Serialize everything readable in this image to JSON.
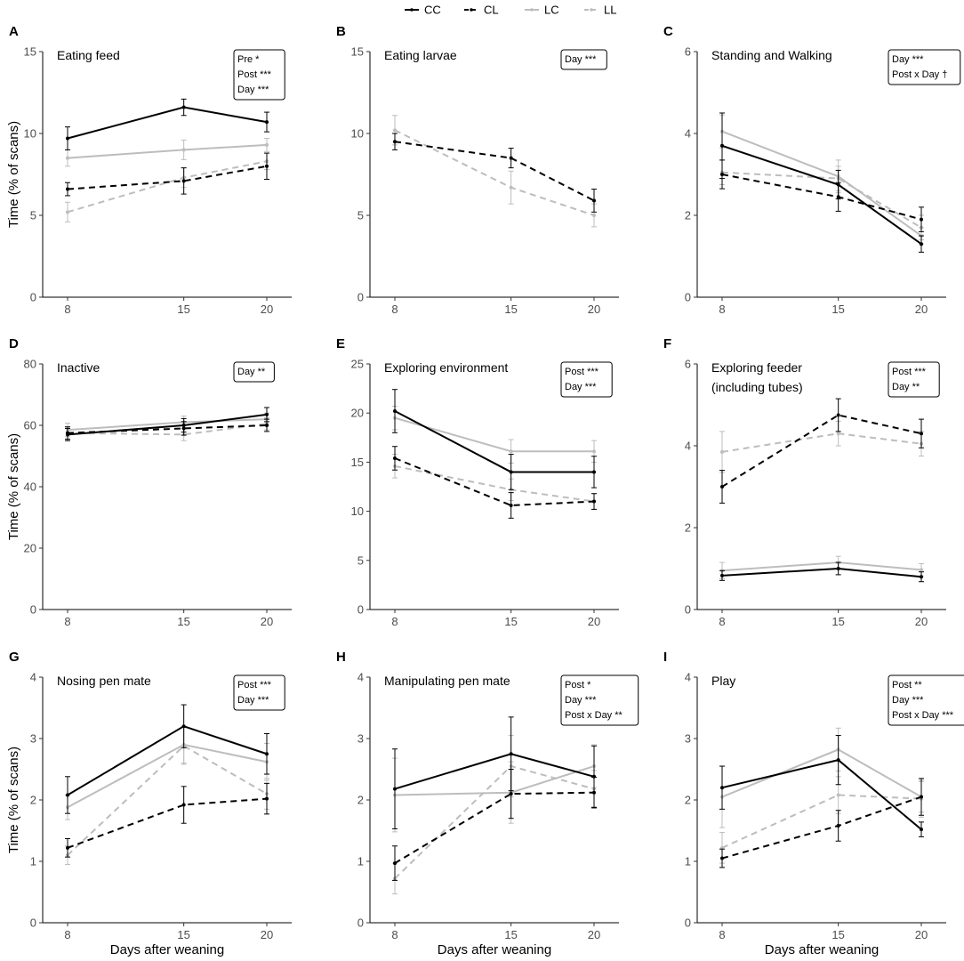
{
  "figure": {
    "x_label": "Days after weaning",
    "y_label": "Time (% of scans)"
  },
  "legend": [
    {
      "name": "CC",
      "color": "#000000",
      "dash": "solid"
    },
    {
      "name": "CL",
      "color": "#000000",
      "dash": "dashed"
    },
    {
      "name": "LC",
      "color": "#bdbdbd",
      "dash": "solid"
    },
    {
      "name": "LL",
      "color": "#bdbdbd",
      "dash": "dashed"
    }
  ],
  "chart_data": [
    {
      "type": "line",
      "letter": "A",
      "title": [
        "Eating feed"
      ],
      "stats": [
        "Pre *",
        "Post ***",
        "Day ***"
      ],
      "x": [
        8,
        15,
        20
      ],
      "xticks": [
        8,
        15,
        20
      ],
      "ylim": [
        0,
        15
      ],
      "yticks": [
        0,
        5,
        10,
        15
      ],
      "series": [
        {
          "name": "CC",
          "values": [
            9.7,
            11.6,
            10.7
          ],
          "err": [
            0.7,
            0.5,
            0.6
          ]
        },
        {
          "name": "CL",
          "values": [
            6.6,
            7.1,
            8.0
          ],
          "err": [
            0.4,
            0.8,
            0.8
          ]
        },
        {
          "name": "LC",
          "values": [
            8.5,
            9.0,
            9.3
          ],
          "err": [
            0.5,
            0.6,
            0.4
          ]
        },
        {
          "name": "LL",
          "values": [
            5.2,
            7.3,
            8.3
          ],
          "err": [
            0.6,
            0.6,
            0.5
          ]
        }
      ]
    },
    {
      "type": "line",
      "letter": "B",
      "title": [
        "Eating larvae"
      ],
      "stats": [
        "Day ***"
      ],
      "x": [
        8,
        15,
        20
      ],
      "xticks": [
        8,
        15,
        20
      ],
      "ylim": [
        0,
        15
      ],
      "yticks": [
        0,
        5,
        10,
        15
      ],
      "series": [
        {
          "name": "CL",
          "values": [
            9.5,
            8.5,
            5.9
          ],
          "err": [
            0.5,
            0.6,
            0.7
          ]
        },
        {
          "name": "LL",
          "values": [
            10.2,
            6.7,
            5.0
          ],
          "err": [
            0.9,
            1.0,
            0.7
          ]
        }
      ]
    },
    {
      "type": "line",
      "letter": "C",
      "title": [
        "Standing and Walking"
      ],
      "stats": [
        "Day ***",
        "Post x Day †"
      ],
      "x": [
        8,
        15,
        20
      ],
      "xticks": [
        8,
        15,
        20
      ],
      "ylim": [
        0,
        6
      ],
      "yticks": [
        0,
        2,
        4,
        6
      ],
      "series": [
        {
          "name": "CC",
          "values": [
            3.7,
            2.75,
            1.3
          ],
          "err": [
            0.8,
            0.35,
            0.2
          ]
        },
        {
          "name": "CL",
          "values": [
            3.0,
            2.45,
            1.9
          ],
          "err": [
            0.35,
            0.35,
            0.3
          ]
        },
        {
          "name": "LC",
          "values": [
            4.05,
            2.95,
            1.5
          ],
          "err": [
            0.4,
            0.4,
            0.2
          ]
        },
        {
          "name": "LL",
          "values": [
            3.05,
            2.9,
            1.7
          ],
          "err": [
            0.3,
            0.3,
            0.3
          ]
        }
      ]
    },
    {
      "type": "line",
      "letter": "D",
      "title": [
        "Inactive"
      ],
      "stats": [
        "Day **"
      ],
      "x": [
        8,
        15,
        20
      ],
      "xticks": [
        8,
        15,
        20
      ],
      "ylim": [
        0,
        80
      ],
      "yticks": [
        0,
        20,
        40,
        60,
        80
      ],
      "series": [
        {
          "name": "CC",
          "values": [
            57.0,
            60.0,
            63.5
          ],
          "err": [
            2.0,
            2.2,
            2.3
          ]
        },
        {
          "name": "CL",
          "values": [
            57.5,
            59.0,
            60.0
          ],
          "err": [
            2.0,
            2.2,
            2.0
          ]
        },
        {
          "name": "LC",
          "values": [
            58.5,
            61.0,
            62.0
          ],
          "err": [
            2.2,
            2.0,
            2.0
          ]
        },
        {
          "name": "LL",
          "values": [
            57.5,
            57.0,
            60.5
          ],
          "err": [
            2.0,
            2.0,
            2.0
          ]
        }
      ]
    },
    {
      "type": "line",
      "letter": "E",
      "title": [
        "Exploring environment"
      ],
      "stats": [
        "Post ***",
        "Day ***"
      ],
      "x": [
        8,
        15,
        20
      ],
      "xticks": [
        8,
        15,
        20
      ],
      "ylim": [
        0,
        25
      ],
      "yticks": [
        0,
        5,
        10,
        15,
        20,
        25
      ],
      "series": [
        {
          "name": "CC",
          "values": [
            20.2,
            14.0,
            14.0
          ],
          "err": [
            2.2,
            1.8,
            1.6
          ]
        },
        {
          "name": "CL",
          "values": [
            15.4,
            10.6,
            11.0
          ],
          "err": [
            1.2,
            1.3,
            0.8
          ]
        },
        {
          "name": "LC",
          "values": [
            19.5,
            16.1,
            16.1
          ],
          "err": [
            1.2,
            1.2,
            1.1
          ]
        },
        {
          "name": "LL",
          "values": [
            14.6,
            12.2,
            11.0
          ],
          "err": [
            1.2,
            1.1,
            0.8
          ]
        }
      ]
    },
    {
      "type": "line",
      "letter": "F",
      "title": [
        "Exploring feeder",
        "(including tubes)"
      ],
      "stats": [
        "Post ***",
        "Day **"
      ],
      "x": [
        8,
        15,
        20
      ],
      "xticks": [
        8,
        15,
        20
      ],
      "ylim": [
        0,
        6
      ],
      "yticks": [
        0,
        2,
        4,
        6
      ],
      "series": [
        {
          "name": "CC",
          "values": [
            0.83,
            1.0,
            0.8
          ],
          "err": [
            0.12,
            0.15,
            0.12
          ]
        },
        {
          "name": "CL",
          "values": [
            3.0,
            4.75,
            4.3
          ],
          "err": [
            0.4,
            0.4,
            0.35
          ]
        },
        {
          "name": "LC",
          "values": [
            0.95,
            1.15,
            0.97
          ],
          "err": [
            0.2,
            0.15,
            0.15
          ]
        },
        {
          "name": "LL",
          "values": [
            3.85,
            4.3,
            4.05
          ],
          "err": [
            0.5,
            0.3,
            0.3
          ]
        }
      ]
    },
    {
      "type": "line",
      "letter": "G",
      "title": [
        "Nosing pen mate"
      ],
      "stats": [
        "Post ***",
        "Day ***"
      ],
      "x": [
        8,
        15,
        20
      ],
      "xticks": [
        8,
        15,
        20
      ],
      "ylim": [
        0,
        4
      ],
      "yticks": [
        0,
        1,
        2,
        3,
        4
      ],
      "series": [
        {
          "name": "CC",
          "values": [
            2.08,
            3.2,
            2.75
          ],
          "err": [
            0.3,
            0.35,
            0.33
          ]
        },
        {
          "name": "CL",
          "values": [
            1.22,
            1.92,
            2.02
          ],
          "err": [
            0.15,
            0.3,
            0.25
          ]
        },
        {
          "name": "LC",
          "values": [
            1.88,
            2.9,
            2.62
          ],
          "err": [
            0.2,
            0.3,
            0.3
          ]
        },
        {
          "name": "LL",
          "values": [
            1.1,
            2.88,
            2.1
          ],
          "err": [
            0.15,
            0.3,
            0.25
          ]
        }
      ]
    },
    {
      "type": "line",
      "letter": "H",
      "title": [
        "Manipulating pen mate"
      ],
      "stats": [
        "Post *",
        "Day ***",
        "Post x Day **"
      ],
      "x": [
        8,
        15,
        20
      ],
      "xticks": [
        8,
        15,
        20
      ],
      "ylim": [
        0,
        4
      ],
      "yticks": [
        0,
        1,
        2,
        3,
        4
      ],
      "series": [
        {
          "name": "CC",
          "values": [
            2.18,
            2.75,
            2.38
          ],
          "err": [
            0.65,
            0.6,
            0.5
          ]
        },
        {
          "name": "CL",
          "values": [
            0.97,
            2.1,
            2.12
          ],
          "err": [
            0.28,
            0.4,
            0.25
          ]
        },
        {
          "name": "LC",
          "values": [
            2.08,
            2.12,
            2.55
          ],
          "err": [
            0.6,
            0.5,
            0.35
          ]
        },
        {
          "name": "LL",
          "values": [
            0.72,
            2.55,
            2.18
          ],
          "err": [
            0.25,
            0.5,
            0.3
          ]
        }
      ]
    },
    {
      "type": "line",
      "letter": "I",
      "title": [
        "Play"
      ],
      "stats": [
        "Post **",
        "Day ***",
        "Post x Day ***"
      ],
      "x": [
        8,
        15,
        20
      ],
      "xticks": [
        8,
        15,
        20
      ],
      "ylim": [
        0,
        4
      ],
      "yticks": [
        0,
        1,
        2,
        3,
        4
      ],
      "series": [
        {
          "name": "CC",
          "values": [
            2.2,
            2.65,
            1.52
          ],
          "err": [
            0.35,
            0.4,
            0.12
          ]
        },
        {
          "name": "CL",
          "values": [
            1.05,
            1.58,
            2.05
          ],
          "err": [
            0.15,
            0.25,
            0.3
          ]
        },
        {
          "name": "LC",
          "values": [
            2.05,
            2.82,
            2.05
          ],
          "err": [
            0.5,
            0.35,
            0.25
          ]
        },
        {
          "name": "LL",
          "values": [
            1.22,
            2.08,
            2.02
          ],
          "err": [
            0.25,
            0.3,
            0.3
          ]
        }
      ]
    }
  ]
}
